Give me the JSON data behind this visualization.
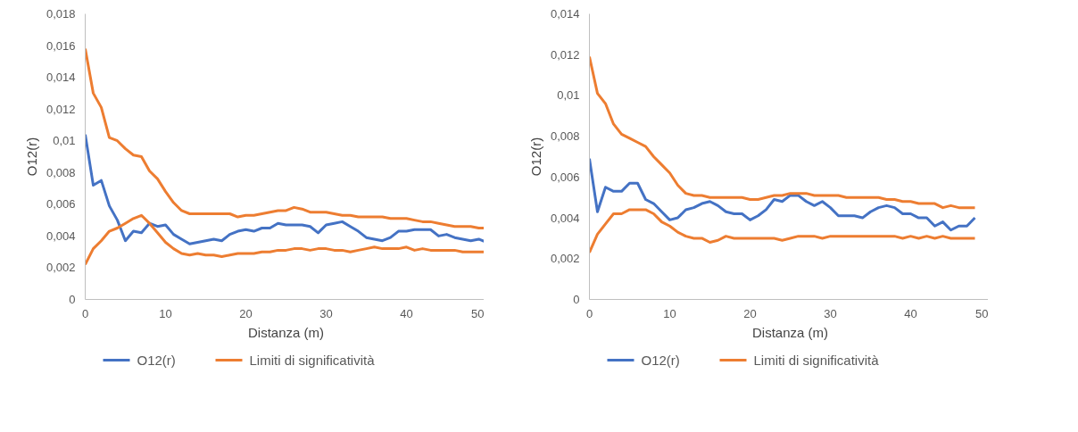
{
  "chart_data": [
    {
      "type": "line",
      "xlabel": "Distanza (m)",
      "ylabel": "O12(r)",
      "legend": "bottom",
      "grid": false,
      "x": [
        0,
        1,
        2,
        3,
        4,
        5,
        6,
        7,
        8,
        9,
        10,
        11,
        12,
        13,
        14,
        15,
        16,
        17,
        18,
        19,
        20,
        21,
        22,
        23,
        24,
        25,
        26,
        27,
        28,
        29,
        30,
        31,
        32,
        33,
        34,
        35,
        36,
        37,
        38,
        39,
        40,
        41,
        42,
        43,
        44,
        45,
        46,
        47,
        48,
        49,
        50
      ],
      "xlim": [
        0,
        50
      ],
      "xticks": [
        0,
        10,
        20,
        30,
        40,
        50
      ],
      "ylim": [
        0,
        0.018
      ],
      "yticks": [
        0,
        {
          "value": 0.002,
          "label": "0,002"
        },
        {
          "value": 0.004,
          "label": "0,004"
        },
        {
          "value": 0.006,
          "label": "0,006"
        },
        {
          "value": 0.008,
          "label": "0,008"
        },
        {
          "value": 0.01,
          "label": "0,01"
        },
        {
          "value": 0.012,
          "label": "0,012"
        },
        {
          "value": 0.014,
          "label": "0,014"
        },
        {
          "value": 0.016,
          "label": "0,016"
        },
        {
          "value": 0.018,
          "label": "0,018"
        }
      ],
      "series": [
        {
          "name": "O12(r)",
          "color": "#4472c4",
          "values": [
            0.0104,
            0.0072,
            0.0075,
            0.0059,
            0.005,
            0.0037,
            0.0043,
            0.0042,
            0.0048,
            0.0046,
            0.0047,
            0.0041,
            0.0038,
            0.0035,
            0.0036,
            0.0037,
            0.0038,
            0.0037,
            0.0041,
            0.0043,
            0.0044,
            0.0043,
            0.0045,
            0.0045,
            0.0048,
            0.0047,
            0.0047,
            0.0047,
            0.0046,
            0.0042,
            0.0047,
            0.0048,
            0.0049,
            0.0046,
            0.0043,
            0.0039,
            0.0038,
            0.0037,
            0.0039,
            0.0043,
            0.0043,
            0.0044,
            0.0044,
            0.0044,
            0.004,
            0.0041,
            0.0039,
            0.0038,
            0.0037,
            0.0038,
            0.0036
          ]
        },
        {
          "name": "Limiti di significatività",
          "color": "#ed7d31",
          "values": [
            0.0158,
            0.013,
            0.0121,
            0.0102,
            0.01,
            0.0095,
            0.0091,
            0.009,
            0.0081,
            0.0076,
            0.0068,
            0.0061,
            0.0056,
            0.0054,
            0.0054,
            0.0054,
            0.0054,
            0.0054,
            0.0054,
            0.0052,
            0.0053,
            0.0053,
            0.0054,
            0.0055,
            0.0056,
            0.0056,
            0.0058,
            0.0057,
            0.0055,
            0.0055,
            0.0055,
            0.0054,
            0.0053,
            0.0053,
            0.0052,
            0.0052,
            0.0052,
            0.0052,
            0.0051,
            0.0051,
            0.0051,
            0.005,
            0.0049,
            0.0049,
            0.0048,
            0.0047,
            0.0046,
            0.0046,
            0.0046,
            0.0045,
            0.0045
          ]
        },
        {
          "color": "#ed7d31",
          "values": [
            0.0022,
            0.0032,
            0.0037,
            0.0043,
            0.0045,
            0.0048,
            0.0051,
            0.0053,
            0.0048,
            0.0042,
            0.0036,
            0.0032,
            0.0029,
            0.0028,
            0.0029,
            0.0028,
            0.0028,
            0.0027,
            0.0028,
            0.0029,
            0.0029,
            0.0029,
            0.003,
            0.003,
            0.0031,
            0.0031,
            0.0032,
            0.0032,
            0.0031,
            0.0032,
            0.0032,
            0.0031,
            0.0031,
            0.003,
            0.0031,
            0.0032,
            0.0033,
            0.0032,
            0.0032,
            0.0032,
            0.0033,
            0.0031,
            0.0032,
            0.0031,
            0.0031,
            0.0031,
            0.0031,
            0.003,
            0.003,
            0.003,
            0.003
          ]
        }
      ]
    },
    {
      "type": "line",
      "xlabel": "Distanza (m)",
      "ylabel": "O12(r)",
      "legend": "bottom",
      "grid": false,
      "x": [
        0,
        1,
        2,
        3,
        4,
        5,
        6,
        7,
        8,
        9,
        10,
        11,
        12,
        13,
        14,
        15,
        16,
        17,
        18,
        19,
        20,
        21,
        22,
        23,
        24,
        25,
        26,
        27,
        28,
        29,
        30,
        31,
        32,
        33,
        34,
        35,
        36,
        37,
        38,
        39,
        40,
        41,
        42,
        43,
        44,
        45,
        46,
        47,
        48
      ],
      "xlim": [
        0,
        50
      ],
      "xticks": [
        0,
        10,
        20,
        30,
        40,
        50
      ],
      "ylim": [
        0,
        0.014
      ],
      "yticks": [
        0,
        {
          "value": 0.002,
          "label": "0,002"
        },
        {
          "value": 0.004,
          "label": "0,004"
        },
        {
          "value": 0.006,
          "label": "0,006"
        },
        {
          "value": 0.008,
          "label": "0,008"
        },
        {
          "value": 0.01,
          "label": "0,01"
        },
        {
          "value": 0.012,
          "label": "0,012"
        },
        {
          "value": 0.014,
          "label": "0,014"
        }
      ],
      "series": [
        {
          "name": "O12(r)",
          "color": "#4472c4",
          "values": [
            0.0069,
            0.0043,
            0.0055,
            0.0053,
            0.0053,
            0.0057,
            0.0057,
            0.0049,
            0.0047,
            0.0043,
            0.0039,
            0.004,
            0.0044,
            0.0045,
            0.0047,
            0.0048,
            0.0046,
            0.0043,
            0.0042,
            0.0042,
            0.0039,
            0.0041,
            0.0044,
            0.0049,
            0.0048,
            0.0051,
            0.0051,
            0.0048,
            0.0046,
            0.0048,
            0.0045,
            0.0041,
            0.0041,
            0.0041,
            0.004,
            0.0043,
            0.0045,
            0.0046,
            0.0045,
            0.0042,
            0.0042,
            0.004,
            0.004,
            0.0036,
            0.0038,
            0.0034,
            0.0036,
            0.0036,
            0.004
          ]
        },
        {
          "name": "Limiti di significatività",
          "color": "#ed7d31",
          "values": [
            0.0119,
            0.0101,
            0.0096,
            0.0086,
            0.0081,
            0.0079,
            0.0077,
            0.0075,
            0.007,
            0.0066,
            0.0062,
            0.0056,
            0.0052,
            0.0051,
            0.0051,
            0.005,
            0.005,
            0.005,
            0.005,
            0.005,
            0.0049,
            0.0049,
            0.005,
            0.0051,
            0.0051,
            0.0052,
            0.0052,
            0.0052,
            0.0051,
            0.0051,
            0.0051,
            0.0051,
            0.005,
            0.005,
            0.005,
            0.005,
            0.005,
            0.0049,
            0.0049,
            0.0048,
            0.0048,
            0.0047,
            0.0047,
            0.0047,
            0.0045,
            0.0046,
            0.0045,
            0.0045,
            0.0045
          ]
        },
        {
          "color": "#ed7d31",
          "values": [
            0.0023,
            0.0032,
            0.0037,
            0.0042,
            0.0042,
            0.0044,
            0.0044,
            0.0044,
            0.0042,
            0.0038,
            0.0036,
            0.0033,
            0.0031,
            0.003,
            0.003,
            0.0028,
            0.0029,
            0.0031,
            0.003,
            0.003,
            0.003,
            0.003,
            0.003,
            0.003,
            0.0029,
            0.003,
            0.0031,
            0.0031,
            0.0031,
            0.003,
            0.0031,
            0.0031,
            0.0031,
            0.0031,
            0.0031,
            0.0031,
            0.0031,
            0.0031,
            0.0031,
            0.003,
            0.0031,
            0.003,
            0.0031,
            0.003,
            0.0031,
            0.003,
            0.003,
            0.003,
            0.003
          ]
        }
      ]
    }
  ]
}
